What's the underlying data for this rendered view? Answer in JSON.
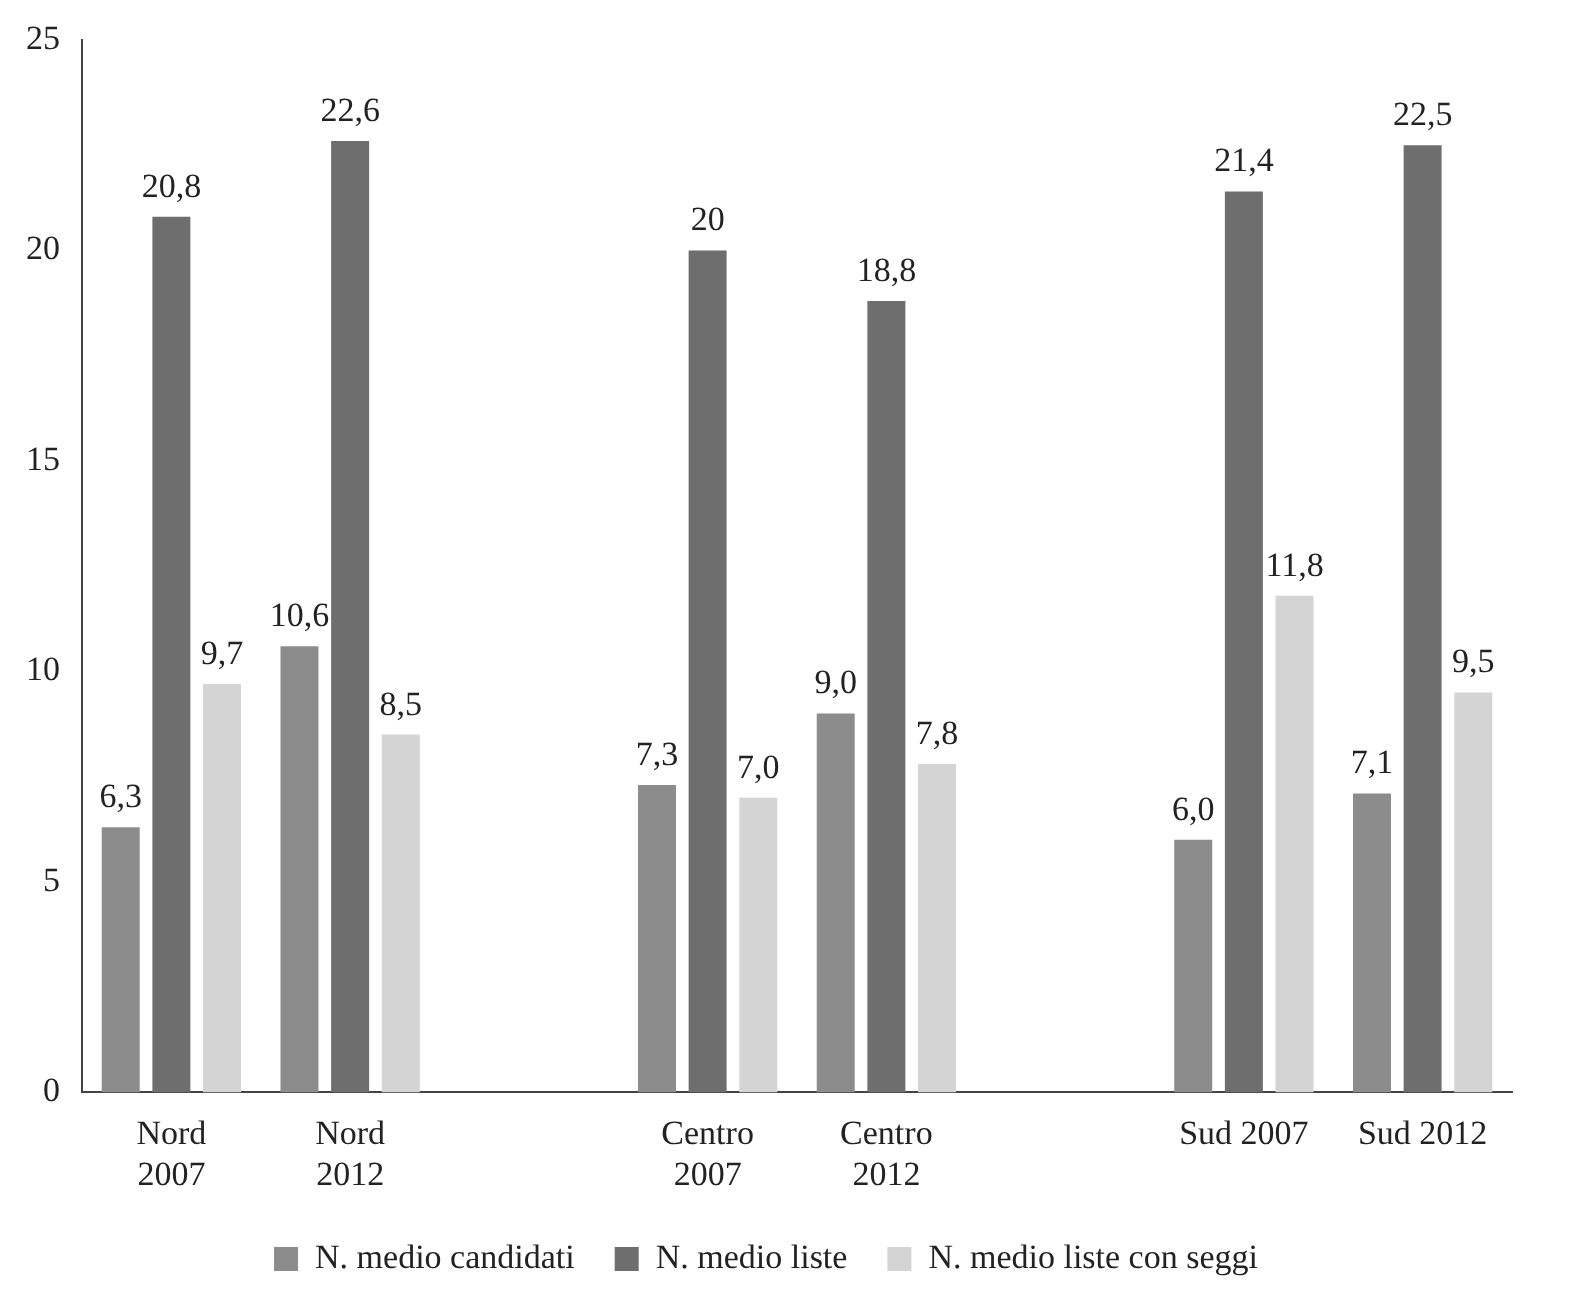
{
  "chart_data": {
    "type": "bar",
    "categories": [
      "Nord 2007",
      "Nord 2012",
      null,
      "Centro 2007",
      "Centro 2012",
      null,
      "Sud 2007",
      "Sud 2012"
    ],
    "series": [
      {
        "name": "N. medio candidati",
        "color": "#8c8c8c",
        "values": [
          6.3,
          10.6,
          null,
          7.3,
          9.0,
          null,
          6.0,
          7.1
        ],
        "value_labels": [
          "6,3",
          "10,6",
          null,
          "7,3",
          "9,0",
          null,
          "6,0",
          "7,1"
        ]
      },
      {
        "name": "N. medio liste",
        "color": "#6e6e6e",
        "values": [
          20.8,
          22.6,
          null,
          20,
          18.8,
          null,
          21.4,
          22.5
        ],
        "value_labels": [
          "20,8",
          "22,6",
          null,
          "20",
          "18,8",
          null,
          "21,4",
          "22,5"
        ]
      },
      {
        "name": "N. medio liste con seggi",
        "color": "#d4d4d4",
        "values": [
          9.7,
          8.5,
          null,
          7.0,
          7.8,
          null,
          11.8,
          9.5
        ],
        "value_labels": [
          "9,7",
          "8,5",
          null,
          "7,0",
          "7,8",
          null,
          "11,8",
          "9,5"
        ]
      }
    ],
    "ylim": [
      0,
      25
    ],
    "yticks": [
      0,
      5,
      10,
      15,
      20,
      25
    ],
    "grid": false,
    "legend": "bottom"
  }
}
